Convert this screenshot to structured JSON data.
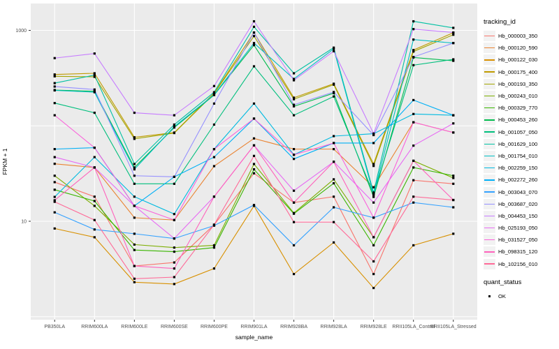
{
  "chart_data": {
    "type": "line",
    "title": "",
    "xlabel": "sample_name",
    "ylabel": "FPKM + 1",
    "y_scale": "log10",
    "y_tick_labels": [
      "10",
      "1000"
    ],
    "y_tick_values": [
      10,
      1000
    ],
    "y_gridline_values": [
      1,
      10,
      100,
      1000
    ],
    "ylim": [
      0.95,
      1900
    ],
    "grid": true,
    "legend_position": "right",
    "panel_bg": "#ebebeb",
    "grid_color": "#ffffff",
    "point_color": "#000000",
    "tick_text_color": "#4d4d4d",
    "categories": [
      "PB350LA",
      "RRIM600LA",
      "RRIM600LE",
      "RRIM600SE",
      "RRIM600PE",
      "RRIM901LA",
      "RRIM928BA",
      "RRIM928LA",
      "RRIM928LE",
      "RRII105LA_Control",
      "RRII105LA_Stressed"
    ],
    "series": [
      {
        "name": "Hb_000003_350",
        "color": "#F8766D",
        "values": [
          25.7,
          18.1,
          3.4,
          3.7,
          9.2,
          31.8,
          15.7,
          18.1,
          2.8,
          26.9,
          24.7
        ]
      },
      {
        "name": "Hb_000120_590",
        "color": "#EA8331",
        "values": [
          40,
          36.6,
          10.9,
          10.3,
          37.8,
          73.8,
          57,
          57,
          22.7,
          109,
          85
        ]
      },
      {
        "name": "Hb_000122_030",
        "color": "#D89000",
        "values": [
          8.4,
          6.8,
          2.3,
          2.2,
          3.2,
          14.5,
          2.8,
          6.0,
          2.0,
          5.6,
          7.4
        ]
      },
      {
        "name": "Hb_000175_400",
        "color": "#C09B00",
        "values": [
          345,
          355,
          75.8,
          85,
          220,
          948,
          197,
          276,
          39.8,
          622,
          945
        ]
      },
      {
        "name": "Hb_000193_350",
        "color": "#A3A500",
        "values": [
          330,
          326,
          73,
          84,
          218,
          871,
          190,
          270,
          38,
          600,
          900
        ]
      },
      {
        "name": "Hb_000243_010",
        "color": "#7CAE00",
        "values": [
          30,
          14.5,
          5.7,
          5.3,
          5.6,
          39.8,
          12.2,
          27.5,
          6.8,
          43,
          28.4
        ]
      },
      {
        "name": "Hb_000329_770",
        "color": "#39B600",
        "values": [
          21.4,
          16.3,
          5.0,
          4.8,
          5.3,
          35,
          12.0,
          25,
          5.6,
          36.6,
          30
        ]
      },
      {
        "name": "Hb_000453_260",
        "color": "#00BB4E",
        "values": [
          237,
          230,
          36.6,
          96,
          210,
          700,
          160,
          220,
          18,
          520,
          480
        ]
      },
      {
        "name": "Hb_001057_050",
        "color": "#00BF7D",
        "values": [
          173,
          137,
          24.7,
          24.7,
          103,
          420,
          129,
          203,
          19.2,
          432,
          497
        ]
      },
      {
        "name": "Hb_001629_100",
        "color": "#00C1A3",
        "values": [
          280,
          340,
          39.8,
          103,
          225,
          1090,
          355,
          659,
          20,
          1244,
          1062
        ]
      },
      {
        "name": "Hb_001754_010",
        "color": "#00BFC4",
        "values": [
          235,
          225,
          35,
          98,
          212,
          736,
          310,
          640,
          19,
          801,
          736
        ]
      },
      {
        "name": "Hb_002259_150",
        "color": "#00BAE0",
        "values": [
          18,
          47,
          18.1,
          11.9,
          57,
          171,
          49.7,
          78,
          82.6,
          133,
          129
        ]
      },
      {
        "name": "Hb_002272_260",
        "color": "#00B0F6",
        "values": [
          57,
          59,
          14.5,
          29.2,
          47,
          119,
          45,
          66,
          66,
          186,
          129
        ]
      },
      {
        "name": "Hb_003043_070",
        "color": "#35A2FF",
        "values": [
          12.4,
          8.2,
          7.4,
          6.6,
          9.0,
          14.8,
          5.6,
          14.0,
          10.9,
          15.7,
          14.0
        ]
      },
      {
        "name": "Hb_003687_020",
        "color": "#9590FF",
        "values": [
          258,
          240,
          30,
          29.2,
          171,
          950,
          166,
          226,
          80,
          526,
          736
        ]
      },
      {
        "name": "Hb_004453_150",
        "color": "#C77CFF",
        "values": [
          512,
          572,
          137,
          129,
          261,
          1244,
          300,
          605,
          83,
          1031,
          950
        ]
      },
      {
        "name": "Hb_025193_050",
        "color": "#E76BF3",
        "values": [
          47,
          36.6,
          14.5,
          6.6,
          18.1,
          62.4,
          20.9,
          42,
          15.7,
          62,
          106
        ]
      },
      {
        "name": "Hb_031527_050",
        "color": "#FA62DB",
        "values": [
          129,
          59,
          14.5,
          10.3,
          57,
          119,
          49.7,
          66,
          10.9,
          109,
          85
        ]
      },
      {
        "name": "Hb_098315_120",
        "color": "#FF62BC",
        "values": [
          16.6,
          36.6,
          3.4,
          3.2,
          18.1,
          62.4,
          15.7,
          42,
          6.8,
          43,
          16.7
        ]
      },
      {
        "name": "Hb_102156_010",
        "color": "#FF6A98",
        "values": [
          16,
          10.3,
          2.5,
          2.6,
          9.2,
          48.4,
          9.8,
          9.8,
          3.8,
          18.1,
          16.7
        ]
      }
    ]
  },
  "legend": {
    "tracking_title": "tracking_id",
    "quant_title": "quant_status",
    "quant_items": [
      {
        "label": "OK"
      }
    ]
  }
}
